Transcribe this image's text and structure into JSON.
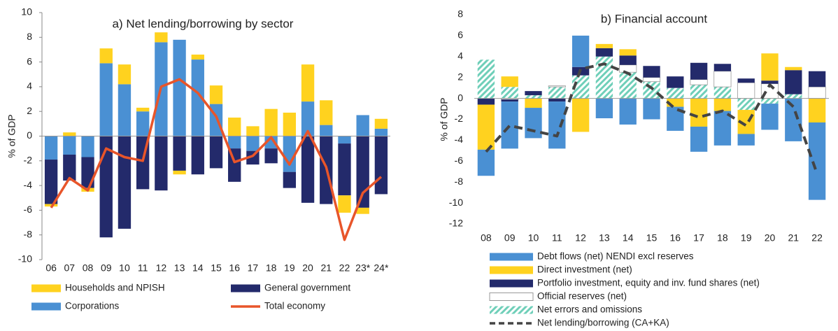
{
  "chart_data": [
    {
      "type": "bar",
      "title": "a) Net lending/borrowing by sector",
      "y_label": "% of GDP",
      "categories": [
        "06",
        "07",
        "08",
        "09",
        "10",
        "11",
        "12",
        "13",
        "14",
        "15",
        "16",
        "17",
        "18",
        "19",
        "20",
        "21",
        "22",
        "23*",
        "24*"
      ],
      "ylim": [
        -10,
        10
      ],
      "yticks": [
        -10,
        -8,
        -6,
        -4,
        -2,
        0,
        2,
        4,
        6,
        8,
        10
      ],
      "series": [
        {
          "name": "Corporations",
          "color": "#4a90d3",
          "values": [
            -1.9,
            -1.5,
            -1.7,
            5.9,
            4.2,
            2.0,
            7.6,
            7.8,
            6.2,
            2.6,
            -1.0,
            -1.2,
            -1.0,
            -2.9,
            2.8,
            0.9,
            -0.6,
            1.7,
            0.6
          ]
        },
        {
          "name": "General government",
          "color": "#232a6b",
          "values": [
            -3.6,
            -2.1,
            -2.5,
            -8.2,
            -7.5,
            -4.3,
            -4.4,
            -2.8,
            -3.1,
            -2.6,
            -2.7,
            -1.1,
            -1.2,
            -1.3,
            -5.4,
            -5.5,
            -4.2,
            -5.8,
            -4.7
          ]
        },
        {
          "name": "Households and NPISH",
          "color": "#ffd21f",
          "values": [
            -0.2,
            0.3,
            -0.3,
            1.2,
            1.6,
            0.3,
            0.8,
            -0.3,
            0.4,
            1.5,
            1.5,
            0.8,
            2.2,
            1.9,
            3.0,
            2.0,
            -1.4,
            -0.5,
            0.8
          ]
        },
        {
          "name": "Total economy",
          "type": "line",
          "color": "#e8552a",
          "values": [
            -5.8,
            -3.4,
            -4.4,
            -1.0,
            -1.7,
            -2.0,
            4.0,
            4.6,
            3.5,
            1.6,
            -2.1,
            -1.6,
            -0.1,
            -2.3,
            0.4,
            -2.5,
            -8.4,
            -4.6,
            -3.3
          ]
        }
      ]
    },
    {
      "type": "bar",
      "title": "b) Financial account",
      "y_label": "% of GDP",
      "categories": [
        "08",
        "09",
        "10",
        "11",
        "12",
        "13",
        "14",
        "15",
        "16",
        "17",
        "18",
        "19",
        "20",
        "21",
        "22"
      ],
      "ylim": [
        -12,
        8
      ],
      "yticks": [
        -12,
        -10,
        -8,
        -6,
        -4,
        -2,
        0,
        2,
        4,
        6,
        8
      ],
      "series": [
        {
          "name": "Debt flows (net) NENDI excl reserves",
          "color": "#4a90d3",
          "values": [
            -2.5,
            -4.5,
            -2.9,
            -4.5,
            3.0,
            -1.9,
            -2.5,
            -2.0,
            -2.3,
            -2.4,
            -3.3,
            -1.1,
            -2.5,
            -4.1,
            -7.4
          ]
        },
        {
          "name": "Direct investment (net)",
          "color": "#ffd21f",
          "values": [
            -4.3,
            1.0,
            -0.9,
            0,
            -3.2,
            0.4,
            0.6,
            0,
            -0.8,
            -2.7,
            -1.2,
            -2.3,
            2.6,
            0.3,
            -2.3
          ]
        },
        {
          "name": "Portfolio investment, equity and inv. fund shares (net)",
          "color": "#232a6b",
          "values": [
            -0.6,
            -0.2,
            0.4,
            -0.3,
            0.8,
            0.8,
            0.9,
            1.1,
            1.1,
            1.6,
            0.7,
            0.4,
            0.3,
            2.3,
            1.5
          ]
        },
        {
          "name": "Official reserves (net)",
          "color": "#ffffff",
          "values": [
            0,
            -0.1,
            0,
            0.1,
            0,
            0,
            0.7,
            0.4,
            0,
            0.5,
            1.5,
            1.5,
            1.4,
            0,
            1.1
          ]
        },
        {
          "name": "Net errors and omissions",
          "color": "#6fcfb9",
          "hatch": true,
          "values": [
            3.7,
            1.1,
            0.3,
            1.1,
            2.2,
            4.0,
            2.5,
            1.6,
            1.0,
            1.3,
            1.1,
            -1.1,
            -0.5,
            0.4,
            0
          ]
        },
        {
          "name": "Net lending/borrowing (CA+KA)",
          "type": "line",
          "dash": true,
          "color": "#444444",
          "values": [
            -5.1,
            -2.6,
            -3.1,
            -3.6,
            2.8,
            3.3,
            2.4,
            1.0,
            -1.0,
            -1.8,
            -1.2,
            -2.6,
            1.3,
            -0.8,
            -7.2
          ]
        }
      ]
    }
  ]
}
